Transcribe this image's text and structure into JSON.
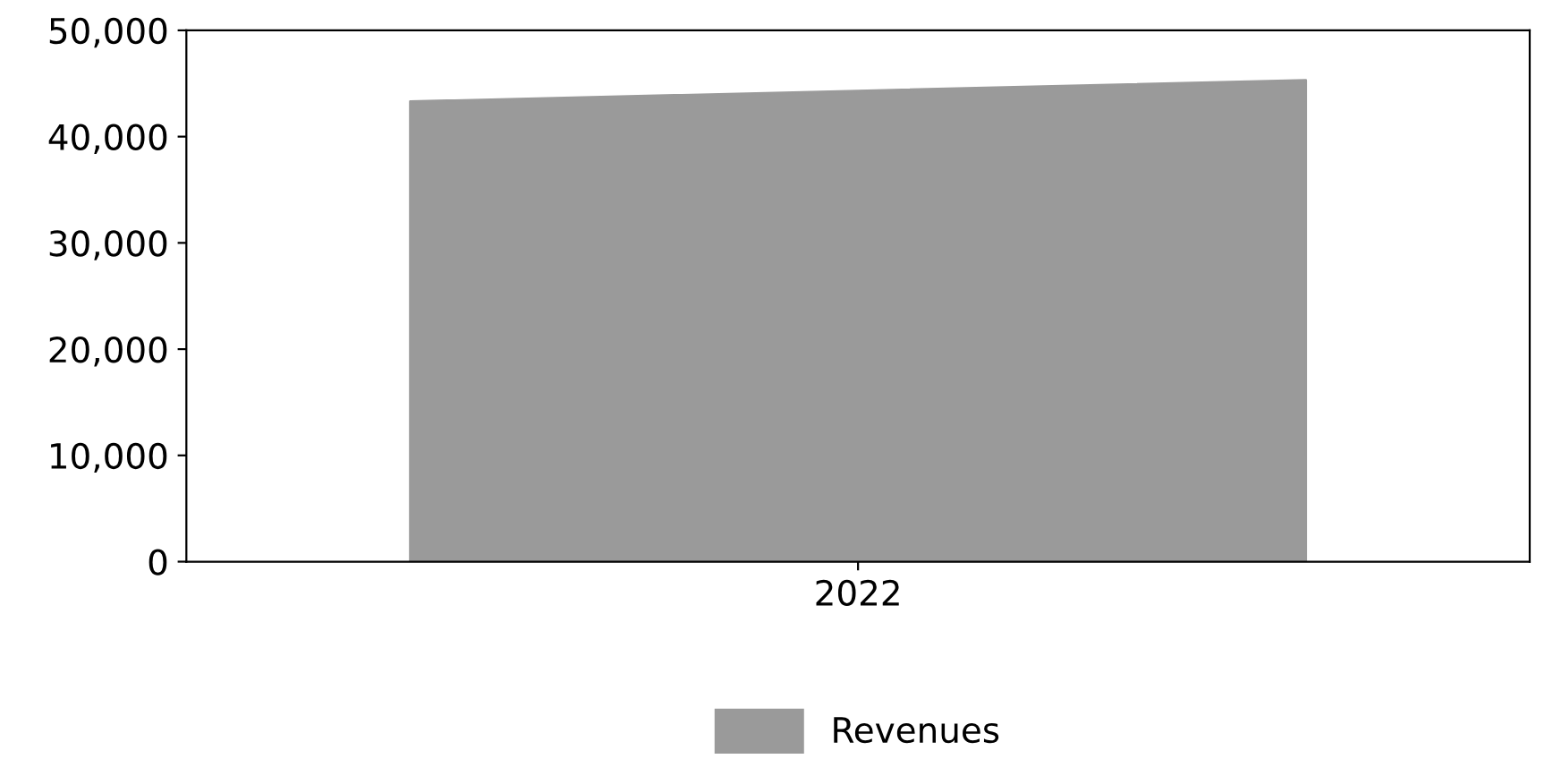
{
  "chart_data": {
    "type": "area",
    "categories": [
      null,
      "2022",
      null
    ],
    "series": [
      {
        "name": "Revenues",
        "color": "#9a9a9a",
        "values": [
          43300,
          44300,
          45300
        ]
      }
    ],
    "ylim": [
      0,
      50000
    ],
    "yticks": [
      {
        "value": 0,
        "label": "0"
      },
      {
        "value": 10000,
        "label": "10,000"
      },
      {
        "value": 20000,
        "label": "20,000"
      },
      {
        "value": 30000,
        "label": "30,000"
      },
      {
        "value": 40000,
        "label": "40,000"
      },
      {
        "value": 50000,
        "label": "50,000"
      }
    ],
    "grid": false,
    "legend": "bottom"
  }
}
